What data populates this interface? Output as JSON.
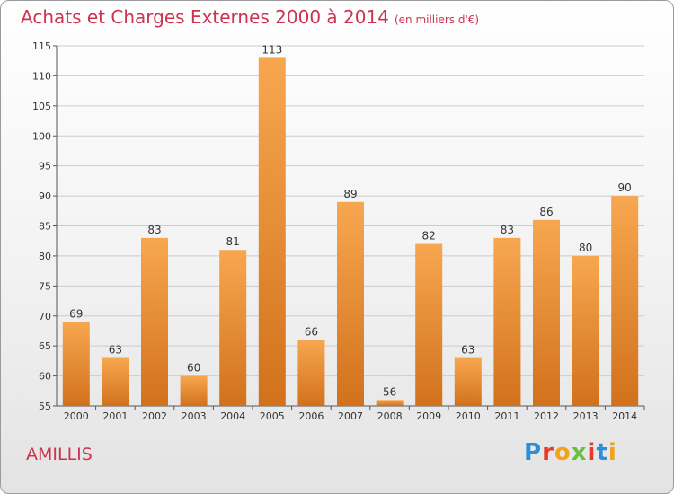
{
  "header": {
    "title": "Achats et Charges Externes 2000 à 2014",
    "unit": "(en milliers d'€)"
  },
  "commune": "AMILLIS",
  "logo": {
    "text": "Proxiti",
    "letter_colors": [
      "#2b8fd8",
      "#e8392f",
      "#f2a31b",
      "#6bbf3f",
      "#e8392f",
      "#2b8fd8",
      "#f2a31b"
    ]
  },
  "colors": {
    "bar_top": "#f7a750",
    "bar_bottom": "#d2711c",
    "title": "#cc3351",
    "grid": "#cccccc"
  },
  "chart_data": {
    "type": "bar",
    "categories": [
      "2000",
      "2001",
      "2002",
      "2003",
      "2004",
      "2005",
      "2006",
      "2007",
      "2008",
      "2009",
      "2010",
      "2011",
      "2012",
      "2013",
      "2014"
    ],
    "values": [
      69,
      63,
      83,
      60,
      81,
      113,
      66,
      89,
      56,
      82,
      63,
      83,
      86,
      80,
      90
    ],
    "title": "Achats et Charges Externes 2000 à 2014",
    "xlabel": "",
    "ylabel": "",
    "ylim": [
      55,
      115
    ],
    "yticks": [
      55,
      60,
      65,
      70,
      75,
      80,
      85,
      90,
      95,
      100,
      105,
      110,
      115
    ],
    "grid": true,
    "data_labels": true
  }
}
